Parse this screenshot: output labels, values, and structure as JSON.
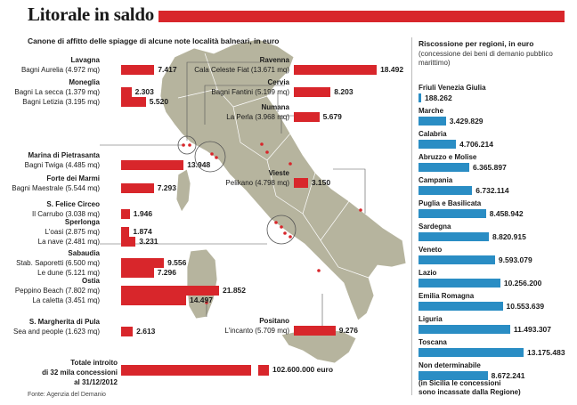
{
  "title": "Litorale in saldo",
  "subtitle": "Canone di affitto delle spiagge di alcune note località balneari, in euro",
  "source": "Fonte: Agenzia del Demanio",
  "colors": {
    "accent_red": "#d8262b",
    "region_blue": "#2a8dc4",
    "map_land": "#b6b49e",
    "map_border": "#ffffff"
  },
  "chart_data": [
    {
      "type": "bar",
      "title": "Canone di affitto delle spiagge di alcune note località balneari, in euro",
      "groups": [
        {
          "town": "Lavagna",
          "items": [
            {
              "label": "Bagni Aurelia (4.972 mq)",
              "value": 7417,
              "display": "7.417"
            }
          ]
        },
        {
          "town": "Moneglia",
          "items": [
            {
              "label": "Bagni La secca (1.379 mq)",
              "value": 2303,
              "display": "2.303"
            },
            {
              "label": "Bagni Letizia (3.195 mq)",
              "value": 5520,
              "display": "5.520"
            }
          ]
        },
        {
          "town": "Marina di Pietrasanta",
          "items": [
            {
              "label": "Bagni Twiga (4.485 mq)",
              "value": 13948,
              "display": "13.948"
            }
          ]
        },
        {
          "town": "Forte dei Marmi",
          "items": [
            {
              "label": "Bagni Maestrale (5.544 mq)",
              "value": 7293,
              "display": "7.293"
            }
          ]
        },
        {
          "town": "S. Felice Circeo",
          "items": [
            {
              "label": "Il Carrubo (3.038 mq)",
              "value": 1946,
              "display": "1.946"
            }
          ]
        },
        {
          "town": "Sperlonga",
          "items": [
            {
              "label": "L'oasi (2.875 mq)",
              "value": 1874,
              "display": "1.874"
            },
            {
              "label": "La nave (2.481 mq)",
              "value": 3231,
              "display": "3.231"
            }
          ]
        },
        {
          "town": "Sabaudia",
          "items": [
            {
              "label": "Stab. Saporetti (6.500 mq)",
              "value": 9556,
              "display": "9.556"
            },
            {
              "label": "Le dune (5.121 mq)",
              "value": 7296,
              "display": "7.296"
            }
          ]
        },
        {
          "town": "Ostia",
          "items": [
            {
              "label": "Peppino Beach (7.802 mq)",
              "value": 21852,
              "display": "21.852"
            },
            {
              "label": "La caletta (3.451 mq)",
              "value": 14497,
              "display": "14.497"
            }
          ]
        },
        {
          "town": "S. Margherita di Pula",
          "items": [
            {
              "label": "Sea and people (1.623 mq)",
              "value": 2613,
              "display": "2.613"
            }
          ]
        },
        {
          "town": "Ravenna",
          "items": [
            {
              "label": "Cala Celeste Fiat (13.671 mq)",
              "value": 18492,
              "display": "18.492"
            }
          ]
        },
        {
          "town": "Cervia",
          "items": [
            {
              "label": "Bagni Fantini (5.199 mq)",
              "value": 8203,
              "display": "8.203"
            }
          ]
        },
        {
          "town": "Numana",
          "items": [
            {
              "label": "La Perla (3.968 mq)",
              "value": 5679,
              "display": "5.679"
            }
          ]
        },
        {
          "town": "Vieste",
          "items": [
            {
              "label": "Pelikano (4.798 mq)",
              "value": 3150,
              "display": "3.150"
            }
          ]
        },
        {
          "town": "Positano",
          "items": [
            {
              "label": "L'incanto (5.709 mq)",
              "value": 9276,
              "display": "9.276"
            }
          ]
        }
      ],
      "total": {
        "label_lines": [
          "Totale introito",
          "di 32 mila concessioni",
          "al 31/12/2012"
        ],
        "value": 102600000,
        "display": "102.600.000 euro"
      }
    },
    {
      "type": "bar",
      "title": "Riscossione per regioni, in euro",
      "note": "(concessione dei beni di demanio pubblico marittimo)",
      "categories": [
        "Friuli Venezia Giulia",
        "Marche",
        "Calabria",
        "Abruzzo e Molise",
        "Campania",
        "Puglia e Basilicata",
        "Sardegna",
        "Veneto",
        "Lazio",
        "Emilia Romagna",
        "Liguria",
        "Toscana",
        "Non determinabile"
      ],
      "values": [
        188262,
        3429829,
        4706214,
        6365897,
        6732114,
        8458942,
        8820915,
        9593079,
        10256200,
        10553639,
        11493307,
        13175483,
        8672241
      ],
      "displays": [
        "188.262",
        "3.429.829",
        "4.706.214",
        "6.365.897",
        "6.732.114",
        "8.458.942",
        "8.820.915",
        "9.593.079",
        "10.256.200",
        "10.553.639",
        "11.493.307",
        "13.175.483",
        "8.672.241"
      ],
      "footnote_lines": [
        "(in Sicilia le concessioni",
        "sono incassate dalla Regione)"
      ]
    }
  ]
}
